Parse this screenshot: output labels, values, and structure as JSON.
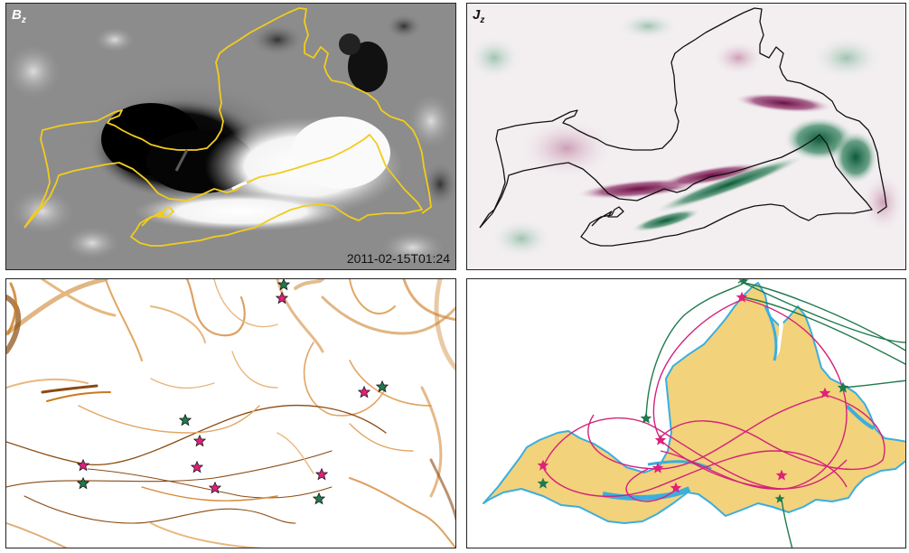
{
  "panels": {
    "bz": {
      "symbol": "B",
      "subscript": "z",
      "timestamp": "2011-02-15T01:24"
    },
    "jz": {
      "symbol": "J",
      "subscript": "z"
    }
  },
  "colors": {
    "contour_bz": "#f2cc1c",
    "contour_jz": "#111111",
    "star_pink": "#e0207a",
    "star_green": "#1f7a4e",
    "region_fill": "#f2d27a",
    "region_edge": "#3aaee0",
    "field_pink": "#d4227a",
    "field_green": "#1f7a4e",
    "qsl_orange": "#c97a1e"
  }
}
